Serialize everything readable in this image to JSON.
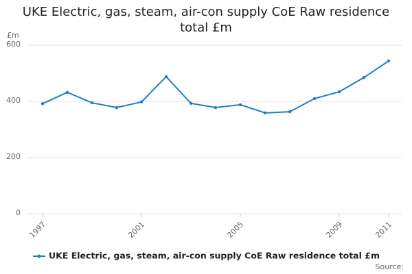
{
  "chart_data": {
    "type": "line",
    "title": "UKE Electric, gas, steam, air-con supply CoE Raw residence total £m",
    "y_unit": "£m",
    "source": "Source:",
    "x": [
      1997,
      1998,
      1999,
      2000,
      2001,
      2002,
      2003,
      2004,
      2005,
      2006,
      2007,
      2008,
      2009,
      2010,
      2011
    ],
    "series": [
      {
        "name": "UKE Electric, gas, steam, air-con supply CoE Raw residence total £m",
        "color": "#1f7fbf",
        "values": [
          392,
          432,
          395,
          378,
          398,
          488,
          393,
          378,
          388,
          359,
          363,
          410,
          434,
          485,
          544
        ]
      }
    ],
    "xlim": [
      1997,
      2011
    ],
    "xticks": [
      1997,
      2001,
      2005,
      2009,
      2011
    ],
    "ylim": [
      0,
      600
    ],
    "yticks": [
      0,
      200,
      400,
      600
    ],
    "grid": true
  }
}
